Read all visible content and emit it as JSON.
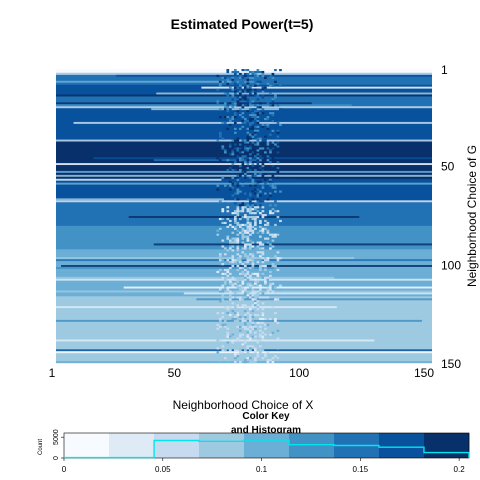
{
  "chart_data": [
    {
      "type": "heatmap",
      "title": "Estimated Power(t=5)",
      "xlabel": "Neighborhood Choice of X",
      "ylabel": "Neighborhood Choice of G",
      "x_ticks": [
        "1",
        "50",
        "100",
        "150"
      ],
      "y_ticks": [
        "1",
        "50",
        "100",
        "150"
      ],
      "x_range": [
        1,
        150
      ],
      "y_range": [
        1,
        150
      ],
      "y_axis_side": "right",
      "palette": [
        "#f7fbff",
        "#deebf7",
        "#c6dbef",
        "#9ecae1",
        "#6baed6",
        "#4292c6",
        "#2171b5",
        "#08519c",
        "#08306b"
      ],
      "row_bands": [
        {
          "from": 1,
          "to": 2,
          "level": 0.02
        },
        {
          "from": 3,
          "to": 8,
          "level": 0.14
        },
        {
          "from": 9,
          "to": 14,
          "level": 0.16
        },
        {
          "from": 15,
          "to": 20,
          "level": 0.14
        },
        {
          "from": 21,
          "to": 30,
          "level": 0.18
        },
        {
          "from": 31,
          "to": 37,
          "level": 0.16
        },
        {
          "from": 38,
          "to": 56,
          "level": 0.19
        },
        {
          "from": 57,
          "to": 68,
          "level": 0.17
        },
        {
          "from": 69,
          "to": 80,
          "level": 0.14
        },
        {
          "from": 81,
          "to": 92,
          "level": 0.12
        },
        {
          "from": 93,
          "to": 104,
          "level": 0.11
        },
        {
          "from": 105,
          "to": 116,
          "level": 0.1
        },
        {
          "from": 117,
          "to": 124,
          "level": 0.09
        },
        {
          "from": 125,
          "to": 130,
          "level": 0.08
        },
        {
          "from": 131,
          "to": 150,
          "level": 0.075
        }
      ],
      "right_block": {
        "x_from": 97,
        "x_to": 150,
        "y_from": 38,
        "y_to": 56,
        "level": 0.2
      },
      "center_band": {
        "x_from": 65,
        "x_to": 90
      }
    },
    {
      "type": "bar",
      "title": "Color Key and Histogram",
      "title_lines": [
        "Color Key",
        "and Histogram"
      ],
      "ylabel": "Count",
      "y_ticks": [
        "0",
        "5000"
      ],
      "x_ticks": [
        "0",
        "0.05",
        "0.1",
        "0.15",
        "0.2"
      ],
      "xlim": [
        0,
        0.205
      ],
      "ylim": [
        0,
        6000
      ],
      "bins": [
        0,
        0.0228,
        0.0456,
        0.0683,
        0.0911,
        0.1139,
        0.1367,
        0.1594,
        0.1822,
        0.205
      ],
      "histogram": [
        100,
        100,
        4200,
        4000,
        4300,
        3200,
        3000,
        2600,
        1300
      ]
    }
  ],
  "colors": {
    "histogram_line": "#00e5ee",
    "text": "#000000"
  }
}
